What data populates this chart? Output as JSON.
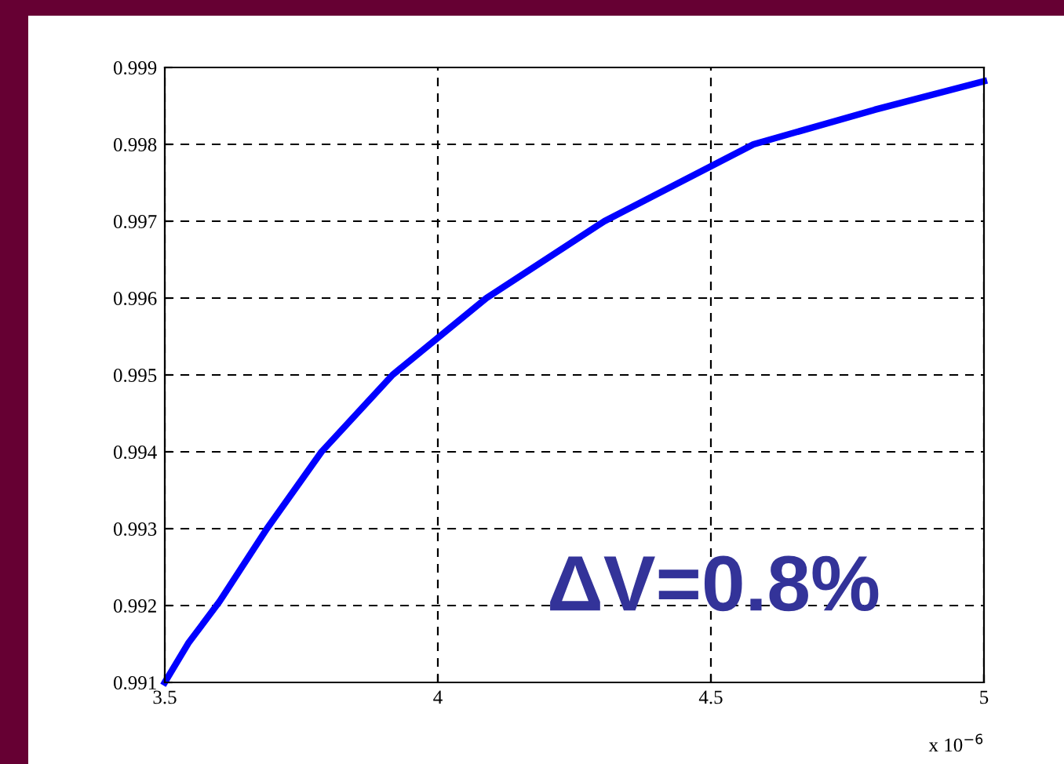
{
  "chart_data": {
    "type": "line",
    "x": [
      3.5,
      3.543,
      3.6,
      3.687,
      3.787,
      3.917,
      4.089,
      4.305,
      4.578,
      4.8,
      5.0
    ],
    "series": [
      {
        "color": "#0000ff",
        "values": [
          0.991,
          0.99151,
          0.99205,
          0.993,
          0.994,
          0.995,
          0.996,
          0.997,
          0.998,
          0.99845,
          0.99882
        ]
      }
    ],
    "xlim": [
      3.5,
      5
    ],
    "xticks": [
      {
        "value": 3.5,
        "label": "3.5"
      },
      {
        "value": 4,
        "label": "4"
      },
      {
        "value": 4.5,
        "label": "4.5"
      },
      {
        "value": 5,
        "label": "5"
      }
    ],
    "ylim": [
      0.991,
      0.999
    ],
    "yticks": [
      {
        "value": 0.991,
        "label": "0.991"
      },
      {
        "value": 0.992,
        "label": "0.992"
      },
      {
        "value": 0.993,
        "label": "0.993"
      },
      {
        "value": 0.994,
        "label": "0.994"
      },
      {
        "value": 0.995,
        "label": "0.995"
      },
      {
        "value": 0.996,
        "label": "0.996"
      },
      {
        "value": 0.997,
        "label": "0.997"
      },
      {
        "value": 0.998,
        "label": "0.998"
      },
      {
        "value": 0.999,
        "label": "0.999"
      }
    ],
    "grid": true,
    "line_style": "solid",
    "marker": "none",
    "annotations": [
      "ΔV=0.8%",
      "x 10$^{−6}$"
    ]
  }
}
